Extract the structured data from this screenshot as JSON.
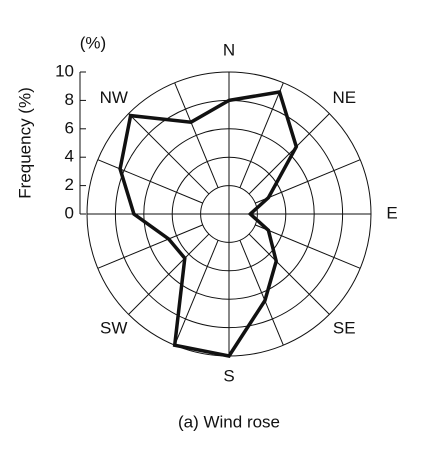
{
  "chart_data": {
    "type": "wind-rose",
    "unit_label": "(%)",
    "ylabel": "Frequency (%)",
    "caption": "(a) Wind rose",
    "categories": [
      "N",
      null,
      "NE",
      null,
      "E",
      null,
      "SE",
      null,
      "S",
      null,
      "SW",
      null,
      null,
      null,
      "NW",
      null
    ],
    "values": [
      8.0,
      9.3,
      6.7,
      3.0,
      1.5,
      3.0,
      4.7,
      6.6,
      10.0,
      10.0,
      4.4,
      4.6,
      6.7,
      8.3,
      9.8,
      7.0
    ],
    "color": "#111111",
    "ylim": [
      0,
      10
    ],
    "yticks": [
      0,
      2,
      4,
      6,
      8,
      10
    ],
    "grid": true
  }
}
